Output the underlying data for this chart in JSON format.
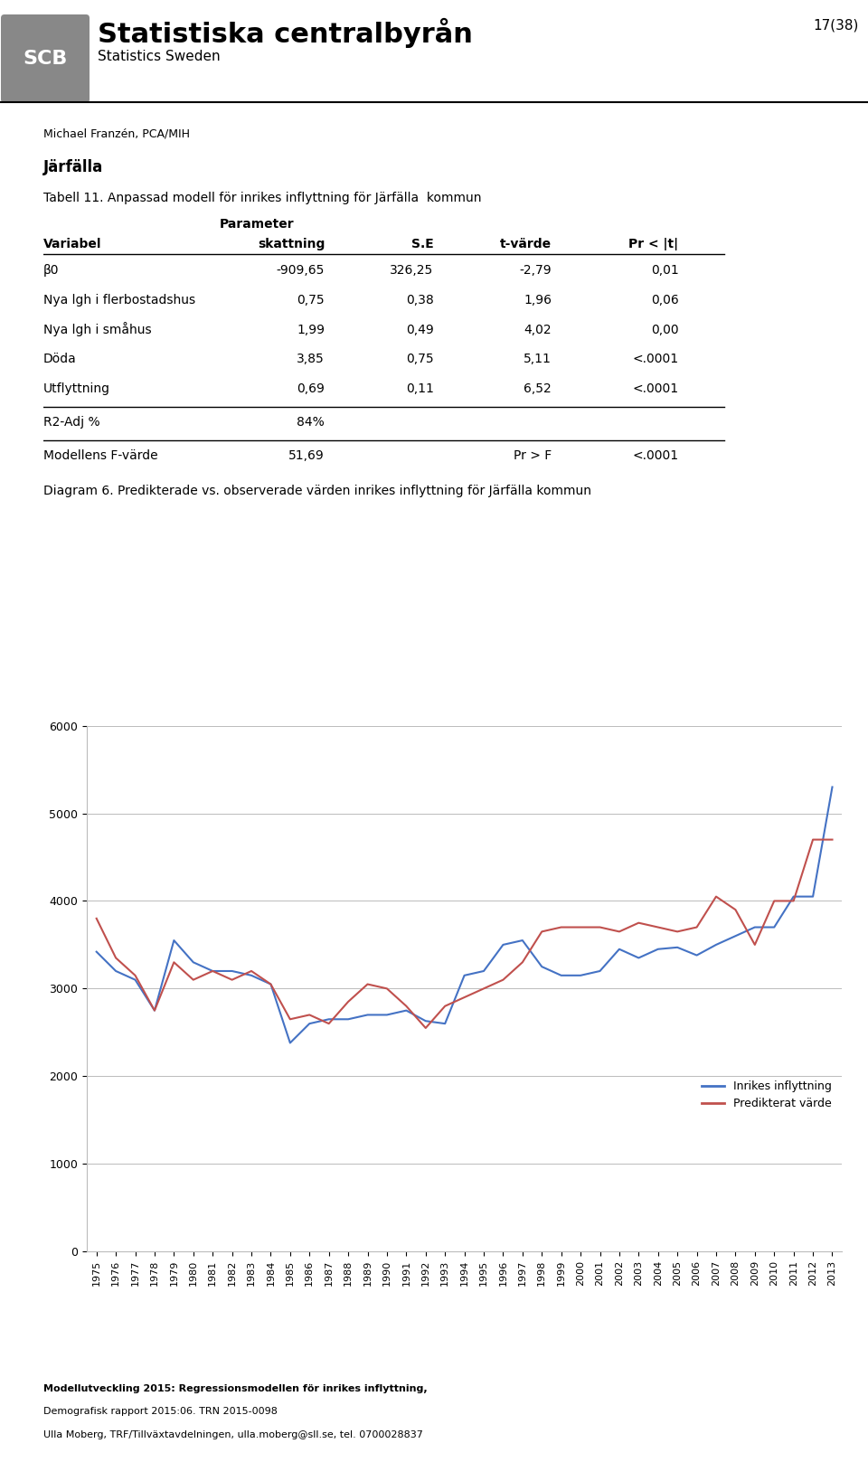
{
  "page_number": "17(38)",
  "header_title": "Statistiska centralbyrån",
  "header_subtitle": "Statistics Sweden",
  "author": "Michael Franzén, PCA/MIH",
  "section": "Järfälla",
  "table_title": "Tabell 11. Anpassad modell för inrikes inflyttning för Järfälla  kommun",
  "table_rows": [
    [
      "β0",
      "-909,65",
      "326,25",
      "-2,79",
      "0,01"
    ],
    [
      "Nya lgh i flerbostadshus",
      "0,75",
      "0,38",
      "1,96",
      "0,06"
    ],
    [
      "Nya lgh i småhus",
      "1,99",
      "0,49",
      "4,02",
      "0,00"
    ],
    [
      "Döda",
      "3,85",
      "0,75",
      "5,11",
      "<.0001"
    ],
    [
      "Utflyttning",
      "0,69",
      "0,11",
      "6,52",
      "<.0001"
    ]
  ],
  "r2_row": [
    "R2-Adj %",
    "84%",
    "",
    "",
    ""
  ],
  "f_row": [
    "Modellens F-värde",
    "51,69",
    "",
    "Pr > F",
    "<.0001"
  ],
  "diagram_title": "Diagram 6. Predikterade vs. observerade värden inrikes inflyttning för Järfälla kommun",
  "years": [
    1975,
    1976,
    1977,
    1978,
    1979,
    1980,
    1981,
    1982,
    1983,
    1984,
    1985,
    1986,
    1987,
    1988,
    1989,
    1990,
    1991,
    1992,
    1993,
    1994,
    1995,
    1996,
    1997,
    1998,
    1999,
    2000,
    2001,
    2002,
    2003,
    2004,
    2005,
    2006,
    2007,
    2008,
    2009,
    2010,
    2011,
    2012,
    2013
  ],
  "inrikes": [
    3420,
    3200,
    3100,
    2750,
    3550,
    3300,
    3200,
    3200,
    3150,
    3050,
    2380,
    2600,
    2650,
    2650,
    2700,
    2700,
    2750,
    2630,
    2600,
    3150,
    3200,
    3500,
    3550,
    3250,
    3150,
    3150,
    3200,
    3450,
    3350,
    3450,
    3470,
    3380,
    3500,
    3600,
    3700,
    3700,
    4050,
    4050,
    5300
  ],
  "predicted": [
    3800,
    3350,
    3150,
    2750,
    3300,
    3100,
    3200,
    3100,
    3200,
    3050,
    2650,
    2700,
    2600,
    2850,
    3050,
    3000,
    2800,
    2550,
    2800,
    2900,
    3000,
    3100,
    3300,
    3650,
    3700,
    3700,
    3700,
    3650,
    3750,
    3700,
    3650,
    3700,
    4050,
    3900,
    3500,
    4000,
    4000,
    4700,
    4700
  ],
  "y_min": 0,
  "y_max": 6000,
  "y_ticks": [
    0,
    1000,
    2000,
    3000,
    4000,
    5000,
    6000
  ],
  "line1_color": "#4472C4",
  "line2_color": "#C0504D",
  "legend_label1": "Inrikes inflyttning",
  "legend_label2": "Predikterat värde",
  "footer_line1": "Modellutveckling 2015: Regressionsmodellen för inrikes inflyttning,",
  "footer_line2": "Demografisk rapport 2015:06. TRN 2015-0098",
  "footer_line3": "Ulla Moberg, TRF/Tillväxtavdelningen, ulla.moberg@sll.se, tel. 0700028837",
  "logo_color": "#888888"
}
